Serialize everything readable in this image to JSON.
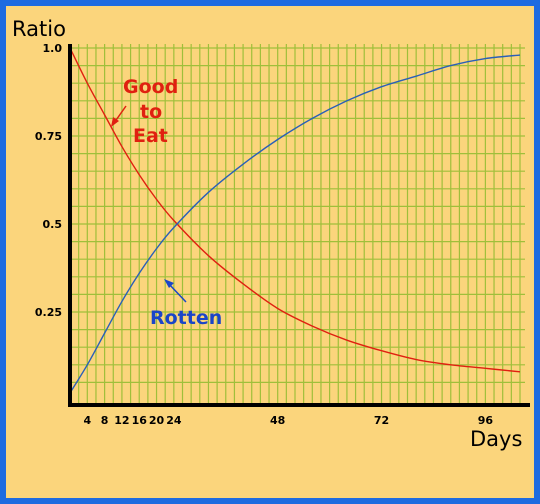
{
  "chart_data": {
    "type": "line",
    "title": "",
    "xlabel": "Days",
    "ylabel": "Ratio",
    "xlim": [
      0,
      104
    ],
    "ylim": [
      0,
      1.0
    ],
    "grid": true,
    "x_ticks": [
      {
        "value": 4,
        "label": "4"
      },
      {
        "value": 8,
        "label": "8"
      },
      {
        "value": 12,
        "label": "12"
      },
      {
        "value": 16,
        "label": "16"
      },
      {
        "value": 20,
        "label": "20"
      },
      {
        "value": 24,
        "label": "24"
      },
      {
        "value": 48,
        "label": "48"
      },
      {
        "value": 72,
        "label": "72"
      },
      {
        "value": 96,
        "label": "96"
      }
    ],
    "y_ticks": [
      {
        "value": 0.25,
        "label": "0.25"
      },
      {
        "value": 0.5,
        "label": "0.5"
      },
      {
        "value": 0.75,
        "label": "0.75"
      },
      {
        "value": 1.0,
        "label": "1.0"
      }
    ],
    "series": [
      {
        "name": "Good to Eat",
        "color": "#e02010",
        "x": [
          0,
          4,
          8,
          12,
          16,
          20,
          24,
          32,
          40,
          48,
          56,
          64,
          72,
          80,
          88,
          96,
          104
        ],
        "y": [
          1.0,
          0.9,
          0.81,
          0.72,
          0.64,
          0.57,
          0.51,
          0.41,
          0.33,
          0.26,
          0.21,
          0.17,
          0.14,
          0.115,
          0.1,
          0.09,
          0.08
        ]
      },
      {
        "name": "Rotten",
        "color": "#2a5fb8",
        "x": [
          0,
          4,
          8,
          12,
          16,
          20,
          24,
          32,
          40,
          48,
          56,
          64,
          72,
          80,
          88,
          96,
          104
        ],
        "y": [
          0.02,
          0.1,
          0.19,
          0.28,
          0.36,
          0.43,
          0.49,
          0.59,
          0.67,
          0.74,
          0.8,
          0.85,
          0.89,
          0.92,
          0.95,
          0.97,
          0.98
        ]
      }
    ],
    "annotations": [
      {
        "lines": [
          "Good",
          "to",
          "Eat"
        ],
        "color": "#e02010"
      },
      {
        "lines": [
          "Rotten"
        ],
        "color": "#1a45c8"
      }
    ]
  }
}
